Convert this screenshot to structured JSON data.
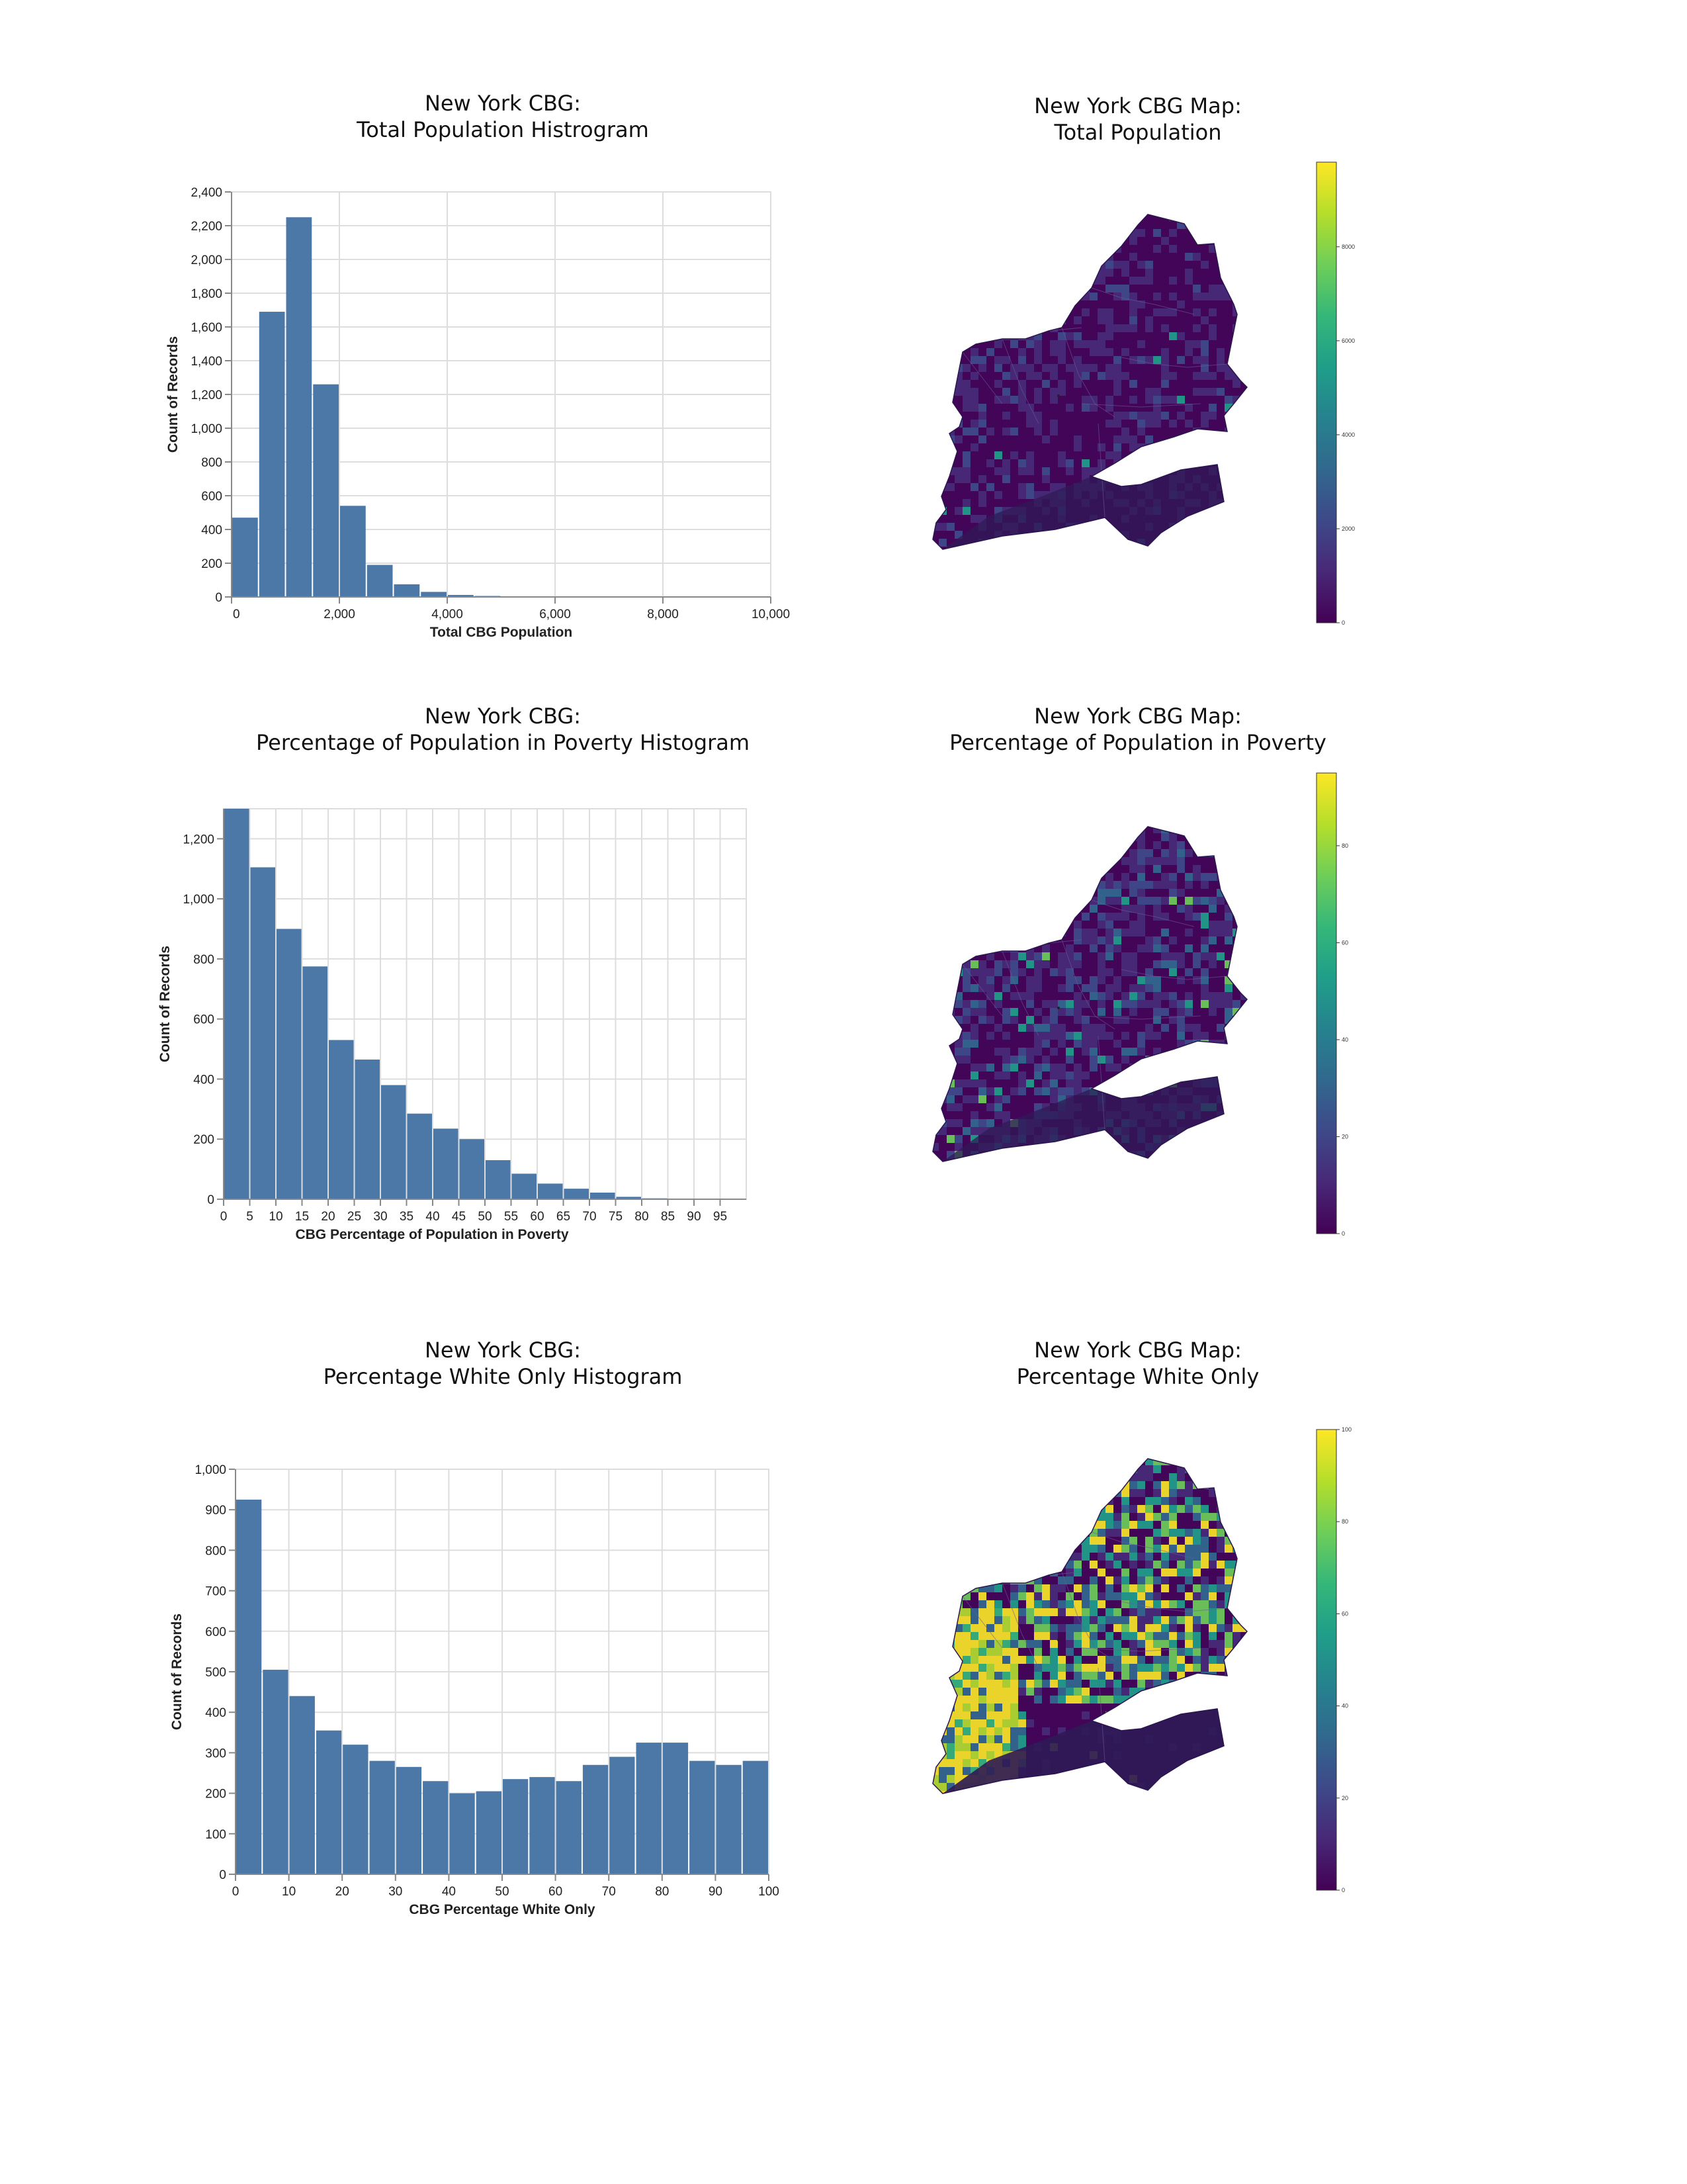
{
  "colors": {
    "bar": "#4c78a8",
    "grid": "#dddddd",
    "axis": "#888888",
    "viridis": [
      "#440154",
      "#482878",
      "#3e4989",
      "#31688e",
      "#26828e",
      "#1f9e89",
      "#35b779",
      "#6ece58",
      "#b5de2b",
      "#fde725"
    ],
    "map_base": "#3d2a72",
    "map_dark": "#2f1a55"
  },
  "histograms": [
    {
      "title_line1": "New York CBG:",
      "title_line2": "Total Population Histrogram",
      "chart_data": {
        "type": "bar",
        "title": "New York CBG: Total Population Histrogram",
        "xlabel": "Total CBG Population",
        "ylabel": "Count of Records",
        "bin_edges": [
          0,
          500,
          1000,
          1500,
          2000,
          2500,
          3000,
          3500,
          4000,
          4500,
          5000,
          5500,
          6000,
          6500,
          7000,
          7500,
          8000,
          8500,
          9000,
          9500,
          10000
        ],
        "values": [
          470,
          1690,
          2250,
          1260,
          540,
          190,
          75,
          30,
          12,
          6,
          3,
          2,
          2,
          1,
          1,
          1,
          0,
          1,
          0,
          1
        ],
        "xlim": [
          0,
          10000
        ],
        "ylim": [
          0,
          2400
        ],
        "xticks": [
          0,
          2000,
          4000,
          6000,
          8000,
          10000
        ],
        "xtick_labels": [
          "0",
          "2,000",
          "4,000",
          "6,000",
          "8,000",
          "10,000"
        ],
        "yticks": [
          0,
          200,
          400,
          600,
          800,
          1000,
          1200,
          1400,
          1600,
          1800,
          2000,
          2200,
          2400
        ],
        "ytick_labels": [
          "0",
          "200",
          "400",
          "600",
          "800",
          "1,000",
          "1,200",
          "1,400",
          "1,600",
          "1,800",
          "2,000",
          "2,200",
          "2,400"
        ],
        "grid": true
      }
    },
    {
      "title_line1": "New York CBG:",
      "title_line2": "Percentage of Population in Poverty Histogram",
      "chart_data": {
        "type": "bar",
        "title": "New York CBG: Percentage of Population in Poverty Histogram",
        "xlabel": "CBG Percentage of Population in Poverty",
        "ylabel": "Count of Records",
        "bin_edges": [
          0,
          5,
          10,
          15,
          20,
          25,
          30,
          35,
          40,
          45,
          50,
          55,
          60,
          65,
          70,
          75,
          80,
          85,
          90,
          95,
          100
        ],
        "values": [
          1300,
          1105,
          900,
          775,
          530,
          465,
          380,
          285,
          235,
          200,
          130,
          85,
          52,
          35,
          22,
          8,
          3,
          2,
          1,
          0
        ],
        "xlim": [
          0,
          100
        ],
        "ylim": [
          0,
          1300
        ],
        "xticks": [
          0,
          5,
          10,
          15,
          20,
          25,
          30,
          35,
          40,
          45,
          50,
          55,
          60,
          65,
          70,
          75,
          80,
          85,
          90,
          95
        ],
        "xtick_labels": [
          "0",
          "5",
          "10",
          "15",
          "20",
          "25",
          "30",
          "35",
          "40",
          "45",
          "50",
          "55",
          "60",
          "65",
          "70",
          "75",
          "80",
          "85",
          "90",
          "95"
        ],
        "yticks": [
          0,
          200,
          400,
          600,
          800,
          1000,
          1200
        ],
        "ytick_labels": [
          "0",
          "200",
          "400",
          "600",
          "800",
          "1,000",
          "1,200"
        ],
        "grid": true
      }
    },
    {
      "title_line1": "New York CBG:",
      "title_line2": "Percentage White Only Histogram",
      "chart_data": {
        "type": "bar",
        "title": "New York CBG: Percentage White Only Histogram",
        "xlabel": "CBG Percentage White Only",
        "ylabel": "Count of Records",
        "bin_edges": [
          0,
          5,
          10,
          15,
          20,
          25,
          30,
          35,
          40,
          45,
          50,
          55,
          60,
          65,
          70,
          75,
          80,
          85,
          90,
          95,
          100
        ],
        "values": [
          925,
          505,
          440,
          355,
          320,
          280,
          265,
          230,
          200,
          205,
          235,
          240,
          230,
          270,
          290,
          325,
          325,
          280,
          270,
          280
        ],
        "xlim": [
          0,
          100
        ],
        "ylim": [
          0,
          1000
        ],
        "xticks": [
          0,
          10,
          20,
          30,
          40,
          50,
          60,
          70,
          80,
          90,
          100
        ],
        "xtick_labels": [
          "0",
          "10",
          "20",
          "30",
          "40",
          "50",
          "60",
          "70",
          "80",
          "90",
          "100"
        ],
        "yticks": [
          0,
          100,
          200,
          300,
          400,
          500,
          600,
          700,
          800,
          900,
          1000
        ],
        "ytick_labels": [
          "0",
          "100",
          "200",
          "300",
          "400",
          "500",
          "600",
          "700",
          "800",
          "900",
          "1,000"
        ],
        "grid": true
      }
    }
  ],
  "maps": [
    {
      "title_line1": "New York CBG Map:",
      "title_line2": "Total Population",
      "colorbar": {
        "min": 0,
        "max": 9800,
        "ticks": [
          0,
          2000,
          4000,
          6000,
          8000
        ],
        "tick_labels": [
          "0",
          "2000",
          "4000",
          "6000",
          "8000"
        ]
      },
      "intensity": "low"
    },
    {
      "title_line1": "New York CBG Map:",
      "title_line2": "Percentage of Population in Poverty",
      "colorbar": {
        "min": 0,
        "max": 95,
        "ticks": [
          0,
          20,
          40,
          60,
          80
        ],
        "tick_labels": [
          "0",
          "20",
          "40",
          "60",
          "80"
        ]
      },
      "intensity": "medium"
    },
    {
      "title_line1": "New York CBG Map:",
      "title_line2": "Percentage White Only",
      "colorbar": {
        "min": 0,
        "max": 100,
        "ticks": [
          0,
          20,
          40,
          60,
          80,
          100
        ],
        "tick_labels": [
          "0",
          "20",
          "40",
          "60",
          "80",
          "100"
        ]
      },
      "intensity": "high"
    }
  ]
}
